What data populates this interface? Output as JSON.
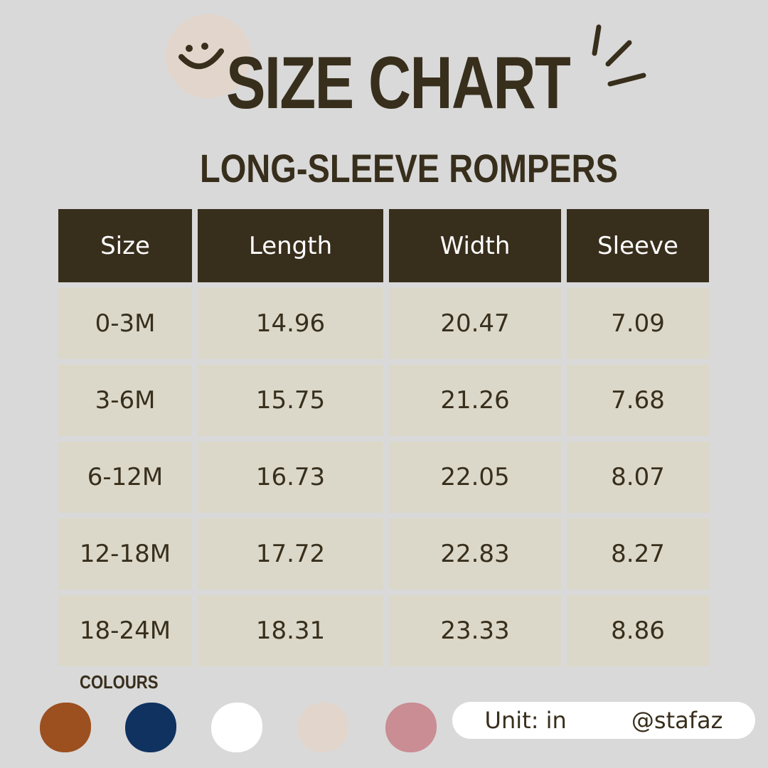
{
  "header": {
    "title": "SIZE CHART",
    "subtitle": "LONG-SLEEVE ROMPERS"
  },
  "table": {
    "columns": [
      "Size",
      "Length",
      "Width",
      "Sleeve"
    ],
    "rows": [
      [
        "0-3M",
        "14.96",
        "20.47",
        "7.09"
      ],
      [
        "3-6M",
        "15.75",
        "21.26",
        "7.68"
      ],
      [
        "6-12M",
        "16.73",
        "22.05",
        "8.07"
      ],
      [
        "12-18M",
        "17.72",
        "22.83",
        "8.27"
      ],
      [
        "18-24M",
        "18.31",
        "23.33",
        "8.86"
      ]
    ]
  },
  "colours": {
    "label": "COLOURS",
    "swatches": [
      "#9c4f1f",
      "#0f3260",
      "#ffffff",
      "#e2d5cb",
      "#c98d93"
    ]
  },
  "footer": {
    "unit": "Unit: in",
    "handle": "@stafaz"
  },
  "theme": {
    "dark": "#382e1c",
    "cell": "#dbd8c9",
    "background": "#d9d9d9"
  }
}
